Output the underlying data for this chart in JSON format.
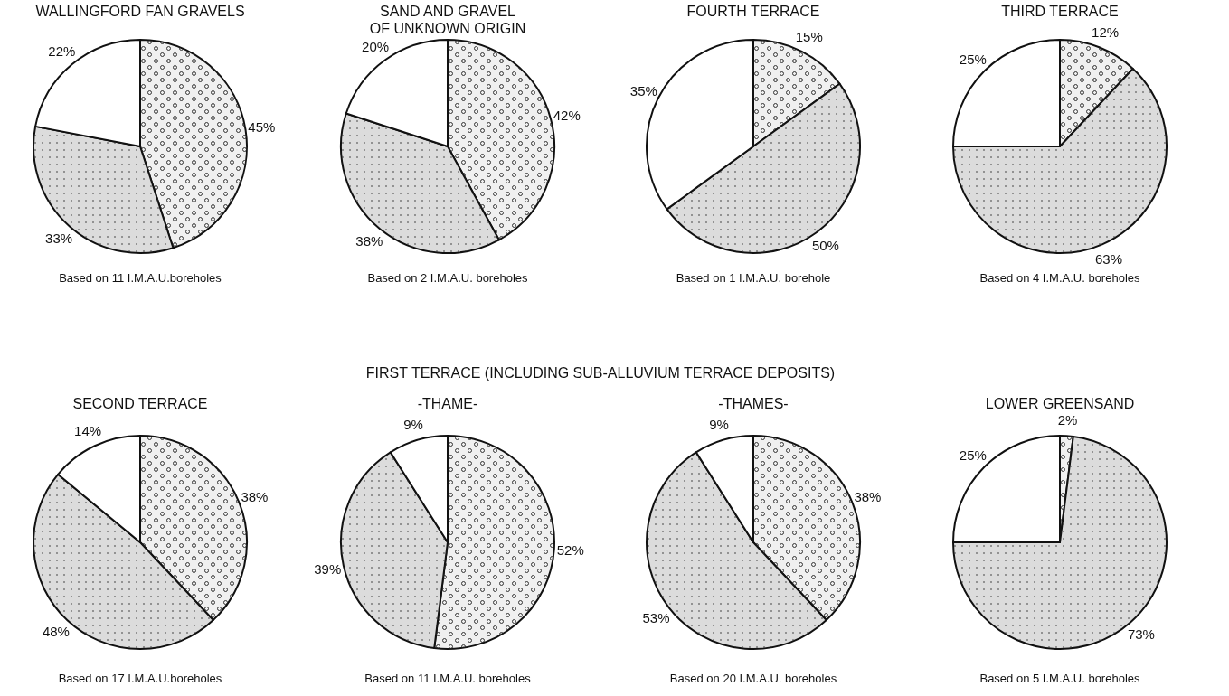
{
  "chart_data": [
    {
      "type": "pie",
      "title": "WALLINGFORD FAN GRAVELS",
      "categories": [
        null,
        null,
        null
      ],
      "values": [
        45,
        33,
        22
      ],
      "colors": [
        "#f0f0f0",
        "#dcdcdc",
        "#ffffff"
      ],
      "value_labels": [
        "45%",
        "33%",
        "22%"
      ],
      "annotations": [
        "Based on 11 I.M.A.U.boreholes"
      ]
    },
    {
      "type": "pie",
      "title": "SAND AND GRAVEL\nOF UNKNOWN ORIGIN",
      "categories": [
        null,
        null,
        null
      ],
      "values": [
        42,
        38,
        20
      ],
      "colors": [
        "#f0f0f0",
        "#dcdcdc",
        "#ffffff"
      ],
      "value_labels": [
        "42%",
        "38%",
        "20%"
      ],
      "annotations": [
        "Based on 2 I.M.A.U. boreholes"
      ]
    },
    {
      "type": "pie",
      "title": "FOURTH TERRACE",
      "categories": [
        null,
        null,
        null
      ],
      "values": [
        15,
        50,
        35
      ],
      "colors": [
        "#f0f0f0",
        "#dcdcdc",
        "#ffffff"
      ],
      "value_labels": [
        "15%",
        "50%",
        "35%"
      ],
      "annotations": [
        "Based on 1 I.M.A.U. borehole"
      ]
    },
    {
      "type": "pie",
      "title": "THIRD TERRACE",
      "categories": [
        null,
        null,
        null
      ],
      "values": [
        12,
        63,
        25
      ],
      "colors": [
        "#f0f0f0",
        "#dcdcdc",
        "#ffffff"
      ],
      "value_labels": [
        "12%",
        "63%",
        "25%"
      ],
      "annotations": [
        "Based on 4 I.M.A.U. boreholes"
      ]
    },
    {
      "type": "pie",
      "title": "SECOND TERRACE",
      "categories": [
        null,
        null,
        null
      ],
      "values": [
        38,
        48,
        14
      ],
      "colors": [
        "#f0f0f0",
        "#dcdcdc",
        "#ffffff"
      ],
      "value_labels": [
        "38%",
        "48%",
        "14%"
      ],
      "annotations": [
        "Based on 17 I.M.A.U.boreholes"
      ]
    },
    {
      "type": "pie",
      "title": "FIRST TERRACE (INCLUDING SUB-ALLUVIUM TERRACE DEPOSITS)",
      "subtitle": "-THAME-",
      "categories": [
        null,
        null,
        null
      ],
      "values": [
        52,
        39,
        9
      ],
      "colors": [
        "#f0f0f0",
        "#dcdcdc",
        "#ffffff"
      ],
      "value_labels": [
        "52%",
        "39%",
        "9%"
      ],
      "annotations": [
        "Based on 11 I.M.A.U. boreholes"
      ]
    },
    {
      "type": "pie",
      "subtitle": "-THAMES-",
      "categories": [
        null,
        null,
        null
      ],
      "values": [
        38,
        53,
        9
      ],
      "colors": [
        "#f0f0f0",
        "#dcdcdc",
        "#ffffff"
      ],
      "value_labels": [
        "38%",
        "53%",
        "9%"
      ],
      "annotations": [
        "Based on 20 I.M.A.U. boreholes"
      ]
    },
    {
      "type": "pie",
      "title": "LOWER GREENSAND",
      "categories": [
        null,
        null,
        null
      ],
      "values": [
        2,
        73,
        25
      ],
      "colors": [
        "#f0f0f0",
        "#dcdcdc",
        "#ffffff"
      ],
      "value_labels": [
        "2%",
        "73%",
        "25%"
      ],
      "annotations": [
        "Based on 5 I.M.A.U. boreholes"
      ]
    }
  ]
}
